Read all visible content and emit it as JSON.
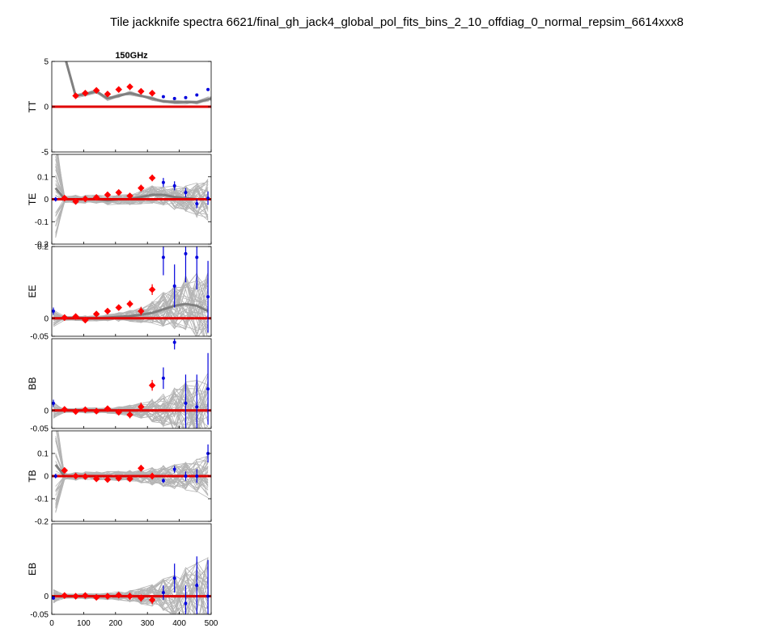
{
  "figure": {
    "title": "Tile jackknife spectra 6621/final_gh_jack4_global_pol_fits_bins_2_10_offdiag_0_normal_repsim_6614xxx8",
    "panel_title": "150GHz"
  },
  "colors": {
    "sims": "#b4b4b4",
    "sim_mean": "#808080",
    "zero": "#e00000",
    "in_range": "#ff0000",
    "out_range": "#0000dd"
  },
  "chart_data": [
    {
      "type": "scatter",
      "spectrum": "TT",
      "ylabel": "TT",
      "xlim": [
        0,
        500
      ],
      "ylim": [
        -5,
        5
      ],
      "yticks": [
        -5,
        0,
        5
      ],
      "ytick_labels": [
        "-5",
        "0",
        "5"
      ],
      "xticks": [],
      "xtick_labels": [],
      "sim_mean": {
        "x": [
          45,
          75,
          105,
          140,
          175,
          210,
          245,
          280,
          315,
          350,
          385,
          420,
          455,
          490,
          500
        ],
        "y": [
          5,
          1.2,
          1.4,
          1.7,
          0.9,
          1.2,
          1.5,
          1.2,
          0.9,
          0.6,
          0.5,
          0.5,
          0.5,
          0.8,
          0.9
        ]
      },
      "sims": {
        "spread": [
          0,
          0.15,
          0.15,
          0.15,
          0.15,
          0.15,
          0.15,
          0.15,
          0.15,
          0.15,
          0.15,
          0.15,
          0.15,
          0.2,
          0.2
        ],
        "count": 10,
        "seed": 11
      },
      "points": [
        {
          "x": 75,
          "y": 1.2,
          "err": 0.15,
          "in_range": true
        },
        {
          "x": 105,
          "y": 1.5,
          "err": 0.15,
          "in_range": true
        },
        {
          "x": 140,
          "y": 1.8,
          "err": 0.15,
          "in_range": true
        },
        {
          "x": 175,
          "y": 1.4,
          "err": 0.15,
          "in_range": true
        },
        {
          "x": 210,
          "y": 1.9,
          "err": 0.15,
          "in_range": true
        },
        {
          "x": 245,
          "y": 2.2,
          "err": 0.15,
          "in_range": true
        },
        {
          "x": 280,
          "y": 1.7,
          "err": 0.15,
          "in_range": true
        },
        {
          "x": 315,
          "y": 1.5,
          "err": 0.15,
          "in_range": true
        },
        {
          "x": 350,
          "y": 1.1,
          "err": 0.1,
          "in_range": false
        },
        {
          "x": 385,
          "y": 0.9,
          "err": 0.1,
          "in_range": false
        },
        {
          "x": 420,
          "y": 1.0,
          "err": 0.1,
          "in_range": false
        },
        {
          "x": 455,
          "y": 1.3,
          "err": 0.1,
          "in_range": false
        },
        {
          "x": 490,
          "y": 1.9,
          "err": 0.15,
          "in_range": false
        }
      ]
    },
    {
      "type": "scatter",
      "spectrum": "TE",
      "ylabel": "TE",
      "xlim": [
        0,
        500
      ],
      "ylim": [
        -0.2,
        0.2
      ],
      "yticks": [
        -0.2,
        -0.1,
        0,
        0.1
      ],
      "ytick_labels": [
        "-0.2",
        "-0.1",
        "0",
        "0.1"
      ],
      "xticks": [],
      "xtick_labels": [],
      "sim_mean": {
        "x": [
          12,
          40,
          75,
          105,
          140,
          175,
          210,
          245,
          280,
          315,
          350,
          385,
          420,
          455,
          490
        ],
        "y": [
          0.05,
          0.0,
          0.0,
          0.0,
          0.0,
          -0.005,
          0.0,
          0.0,
          0.01,
          0.02,
          0.02,
          0.01,
          0.005,
          0.0,
          0.0
        ]
      },
      "sims": {
        "spread": [
          0.15,
          0.01,
          0.012,
          0.012,
          0.012,
          0.013,
          0.014,
          0.016,
          0.02,
          0.025,
          0.03,
          0.035,
          0.04,
          0.05,
          0.06
        ],
        "count": 40,
        "seed": 23
      },
      "points": [
        {
          "x": 12,
          "y": 0.0,
          "err": 0.01,
          "in_range": false
        },
        {
          "x": 40,
          "y": 0.005,
          "err": 0.01,
          "in_range": true
        },
        {
          "x": 75,
          "y": -0.01,
          "err": 0.01,
          "in_range": true
        },
        {
          "x": 105,
          "y": 0.002,
          "err": 0.01,
          "in_range": true
        },
        {
          "x": 140,
          "y": 0.008,
          "err": 0.01,
          "in_range": true
        },
        {
          "x": 175,
          "y": 0.02,
          "err": 0.01,
          "in_range": true
        },
        {
          "x": 210,
          "y": 0.03,
          "err": 0.01,
          "in_range": true
        },
        {
          "x": 245,
          "y": 0.015,
          "err": 0.012,
          "in_range": true
        },
        {
          "x": 280,
          "y": 0.05,
          "err": 0.015,
          "in_range": true
        },
        {
          "x": 315,
          "y": 0.095,
          "err": 0.015,
          "in_range": true
        },
        {
          "x": 350,
          "y": 0.075,
          "err": 0.02,
          "in_range": false
        },
        {
          "x": 385,
          "y": 0.06,
          "err": 0.02,
          "in_range": false
        },
        {
          "x": 420,
          "y": 0.03,
          "err": 0.02,
          "in_range": false
        },
        {
          "x": 455,
          "y": -0.02,
          "err": 0.02,
          "in_range": false
        },
        {
          "x": 490,
          "y": 0.005,
          "err": 0.03,
          "in_range": false
        }
      ]
    },
    {
      "type": "scatter",
      "spectrum": "EE",
      "ylabel": "EE",
      "xlim": [
        0,
        500
      ],
      "ylim": [
        -0.05,
        0.2
      ],
      "yticks": [
        -0.05,
        0,
        0.2
      ],
      "ytick_labels": [
        "-0.05",
        "0",
        "0.2"
      ],
      "xticks": [],
      "xtick_labels": [],
      "sim_mean": {
        "x": [
          5,
          40,
          75,
          105,
          140,
          175,
          210,
          245,
          280,
          315,
          350,
          385,
          420,
          455,
          490
        ],
        "y": [
          0.0,
          0.0,
          0.0,
          0.0,
          0.0,
          0.002,
          0.004,
          0.006,
          0.01,
          0.015,
          0.025,
          0.035,
          0.04,
          0.035,
          0.02
        ]
      },
      "sims": {
        "spread": [
          0.015,
          0.004,
          0.004,
          0.005,
          0.005,
          0.006,
          0.008,
          0.01,
          0.014,
          0.02,
          0.03,
          0.04,
          0.05,
          0.06,
          0.07
        ],
        "count": 40,
        "seed": 37
      },
      "points": [
        {
          "x": 5,
          "y": 0.02,
          "err": 0.01,
          "in_range": false
        },
        {
          "x": 40,
          "y": 0.002,
          "err": 0.004,
          "in_range": true
        },
        {
          "x": 75,
          "y": 0.005,
          "err": 0.004,
          "in_range": true
        },
        {
          "x": 105,
          "y": -0.005,
          "err": 0.005,
          "in_range": true
        },
        {
          "x": 140,
          "y": 0.012,
          "err": 0.005,
          "in_range": true
        },
        {
          "x": 175,
          "y": 0.02,
          "err": 0.006,
          "in_range": true
        },
        {
          "x": 210,
          "y": 0.03,
          "err": 0.008,
          "in_range": true
        },
        {
          "x": 245,
          "y": 0.04,
          "err": 0.01,
          "in_range": true
        },
        {
          "x": 280,
          "y": 0.02,
          "err": 0.012,
          "in_range": true
        },
        {
          "x": 315,
          "y": 0.08,
          "err": 0.015,
          "in_range": true
        },
        {
          "x": 350,
          "y": 0.17,
          "err": 0.05,
          "in_range": false
        },
        {
          "x": 385,
          "y": 0.09,
          "err": 0.06,
          "in_range": false
        },
        {
          "x": 420,
          "y": 0.18,
          "err": 0.08,
          "in_range": false
        },
        {
          "x": 455,
          "y": 0.17,
          "err": 0.09,
          "in_range": false
        },
        {
          "x": 490,
          "y": 0.06,
          "err": 0.1,
          "in_range": false
        }
      ]
    },
    {
      "type": "scatter",
      "spectrum": "BB",
      "ylabel": "BB",
      "xlim": [
        0,
        500
      ],
      "ylim": [
        -0.05,
        0.2
      ],
      "yticks": [
        -0.05,
        0
      ],
      "ytick_labels": [
        "-0.05",
        "0"
      ],
      "xticks": [],
      "xtick_labels": [],
      "sim_mean": {
        "x": [
          5,
          40,
          75,
          105,
          140,
          175,
          210,
          245,
          280,
          315,
          350,
          385,
          420,
          455,
          490
        ],
        "y": [
          0.0,
          0.0,
          0.0,
          0.0,
          0.0,
          0.0,
          0.0,
          0.0,
          0.0,
          0.0,
          0.0,
          0.0,
          0.0,
          0.0,
          0.0
        ]
      },
      "sims": {
        "spread": [
          0.015,
          0.004,
          0.004,
          0.005,
          0.005,
          0.006,
          0.008,
          0.01,
          0.014,
          0.02,
          0.03,
          0.04,
          0.05,
          0.06,
          0.07
        ],
        "count": 40,
        "seed": 53
      },
      "points": [
        {
          "x": 5,
          "y": 0.02,
          "err": 0.01,
          "in_range": false
        },
        {
          "x": 40,
          "y": 0.003,
          "err": 0.004,
          "in_range": true
        },
        {
          "x": 75,
          "y": -0.003,
          "err": 0.004,
          "in_range": true
        },
        {
          "x": 105,
          "y": 0.002,
          "err": 0.005,
          "in_range": true
        },
        {
          "x": 140,
          "y": -0.002,
          "err": 0.005,
          "in_range": true
        },
        {
          "x": 175,
          "y": 0.005,
          "err": 0.006,
          "in_range": true
        },
        {
          "x": 210,
          "y": -0.005,
          "err": 0.008,
          "in_range": true
        },
        {
          "x": 245,
          "y": -0.012,
          "err": 0.01,
          "in_range": true
        },
        {
          "x": 280,
          "y": 0.01,
          "err": 0.012,
          "in_range": true
        },
        {
          "x": 315,
          "y": 0.07,
          "err": 0.015,
          "in_range": true
        },
        {
          "x": 350,
          "y": 0.09,
          "err": 0.03,
          "in_range": false
        },
        {
          "x": 385,
          "y": 0.19,
          "err": 0.02,
          "in_range": false
        },
        {
          "x": 420,
          "y": 0.02,
          "err": 0.08,
          "in_range": false
        },
        {
          "x": 455,
          "y": 0.01,
          "err": 0.09,
          "in_range": false
        },
        {
          "x": 490,
          "y": 0.06,
          "err": 0.1,
          "in_range": false
        }
      ]
    },
    {
      "type": "scatter",
      "spectrum": "TB",
      "ylabel": "TB",
      "xlim": [
        0,
        500
      ],
      "ylim": [
        -0.2,
        0.2
      ],
      "yticks": [
        -0.2,
        -0.1,
        0,
        0.1
      ],
      "ytick_labels": [
        "-0.2",
        "-0.1",
        "0",
        "0.1"
      ],
      "xticks": [],
      "xtick_labels": [],
      "sim_mean": {
        "x": [
          12,
          40,
          75,
          105,
          140,
          175,
          210,
          245,
          280,
          315,
          350,
          385,
          420,
          455,
          490
        ],
        "y": [
          0.05,
          0.0,
          0.0,
          0.0,
          0.0,
          0.0,
          0.0,
          0.0,
          0.0,
          0.0,
          0.0,
          0.0,
          0.0,
          0.0,
          0.0
        ]
      },
      "sims": {
        "spread": [
          0.15,
          0.01,
          0.012,
          0.012,
          0.012,
          0.013,
          0.014,
          0.016,
          0.02,
          0.025,
          0.03,
          0.035,
          0.04,
          0.05,
          0.06
        ],
        "count": 40,
        "seed": 71
      },
      "points": [
        {
          "x": 12,
          "y": 0.0,
          "err": 0.01,
          "in_range": false
        },
        {
          "x": 40,
          "y": 0.025,
          "err": 0.01,
          "in_range": true
        },
        {
          "x": 75,
          "y": 0.0,
          "err": 0.01,
          "in_range": true
        },
        {
          "x": 105,
          "y": -0.002,
          "err": 0.01,
          "in_range": true
        },
        {
          "x": 140,
          "y": -0.012,
          "err": 0.01,
          "in_range": true
        },
        {
          "x": 175,
          "y": -0.015,
          "err": 0.01,
          "in_range": true
        },
        {
          "x": 210,
          "y": -0.01,
          "err": 0.01,
          "in_range": true
        },
        {
          "x": 245,
          "y": -0.012,
          "err": 0.012,
          "in_range": true
        },
        {
          "x": 280,
          "y": 0.035,
          "err": 0.015,
          "in_range": true
        },
        {
          "x": 315,
          "y": 0.0,
          "err": 0.015,
          "in_range": true
        },
        {
          "x": 350,
          "y": -0.02,
          "err": 0.01,
          "in_range": false
        },
        {
          "x": 385,
          "y": 0.03,
          "err": 0.015,
          "in_range": false
        },
        {
          "x": 420,
          "y": 0.0,
          "err": 0.02,
          "in_range": false
        },
        {
          "x": 455,
          "y": 0.0,
          "err": 0.03,
          "in_range": false
        },
        {
          "x": 490,
          "y": 0.1,
          "err": 0.04,
          "in_range": false
        }
      ]
    },
    {
      "type": "scatter",
      "spectrum": "EB",
      "ylabel": "EB",
      "xlim": [
        0,
        500
      ],
      "ylim": [
        -0.05,
        0.2
      ],
      "yticks": [
        -0.05,
        0
      ],
      "ytick_labels": [
        "-0.05",
        "0"
      ],
      "xticks": [
        0,
        100,
        200,
        300,
        400,
        500
      ],
      "xtick_labels": [
        "0",
        "100",
        "200",
        "300",
        "400",
        "500"
      ],
      "sim_mean": {
        "x": [
          5,
          40,
          75,
          105,
          140,
          175,
          210,
          245,
          280,
          315,
          350,
          385,
          420,
          455,
          490
        ],
        "y": [
          0.0,
          0.0,
          0.0,
          0.0,
          0.0,
          0.0,
          0.0,
          0.0,
          0.0,
          0.0,
          0.0,
          0.0,
          0.0,
          0.0,
          0.0
        ]
      },
      "sims": {
        "spread": [
          0.012,
          0.004,
          0.004,
          0.005,
          0.005,
          0.006,
          0.008,
          0.01,
          0.014,
          0.02,
          0.03,
          0.04,
          0.05,
          0.06,
          0.07
        ],
        "count": 40,
        "seed": 97
      },
      "points": [
        {
          "x": 5,
          "y": -0.005,
          "err": 0.005,
          "in_range": false
        },
        {
          "x": 40,
          "y": 0.002,
          "err": 0.004,
          "in_range": true
        },
        {
          "x": 75,
          "y": 0.0,
          "err": 0.004,
          "in_range": true
        },
        {
          "x": 105,
          "y": 0.002,
          "err": 0.005,
          "in_range": true
        },
        {
          "x": 140,
          "y": -0.003,
          "err": 0.005,
          "in_range": true
        },
        {
          "x": 175,
          "y": 0.0,
          "err": 0.006,
          "in_range": true
        },
        {
          "x": 210,
          "y": 0.003,
          "err": 0.008,
          "in_range": true
        },
        {
          "x": 245,
          "y": 0.0,
          "err": 0.01,
          "in_range": true
        },
        {
          "x": 280,
          "y": -0.005,
          "err": 0.01,
          "in_range": true
        },
        {
          "x": 315,
          "y": -0.01,
          "err": 0.012,
          "in_range": true
        },
        {
          "x": 350,
          "y": 0.01,
          "err": 0.02,
          "in_range": false
        },
        {
          "x": 385,
          "y": 0.05,
          "err": 0.04,
          "in_range": false
        },
        {
          "x": 420,
          "y": -0.02,
          "err": 0.05,
          "in_range": false
        },
        {
          "x": 455,
          "y": 0.03,
          "err": 0.08,
          "in_range": false
        },
        {
          "x": 490,
          "y": 0.0,
          "err": 0.1,
          "in_range": false
        }
      ]
    }
  ]
}
